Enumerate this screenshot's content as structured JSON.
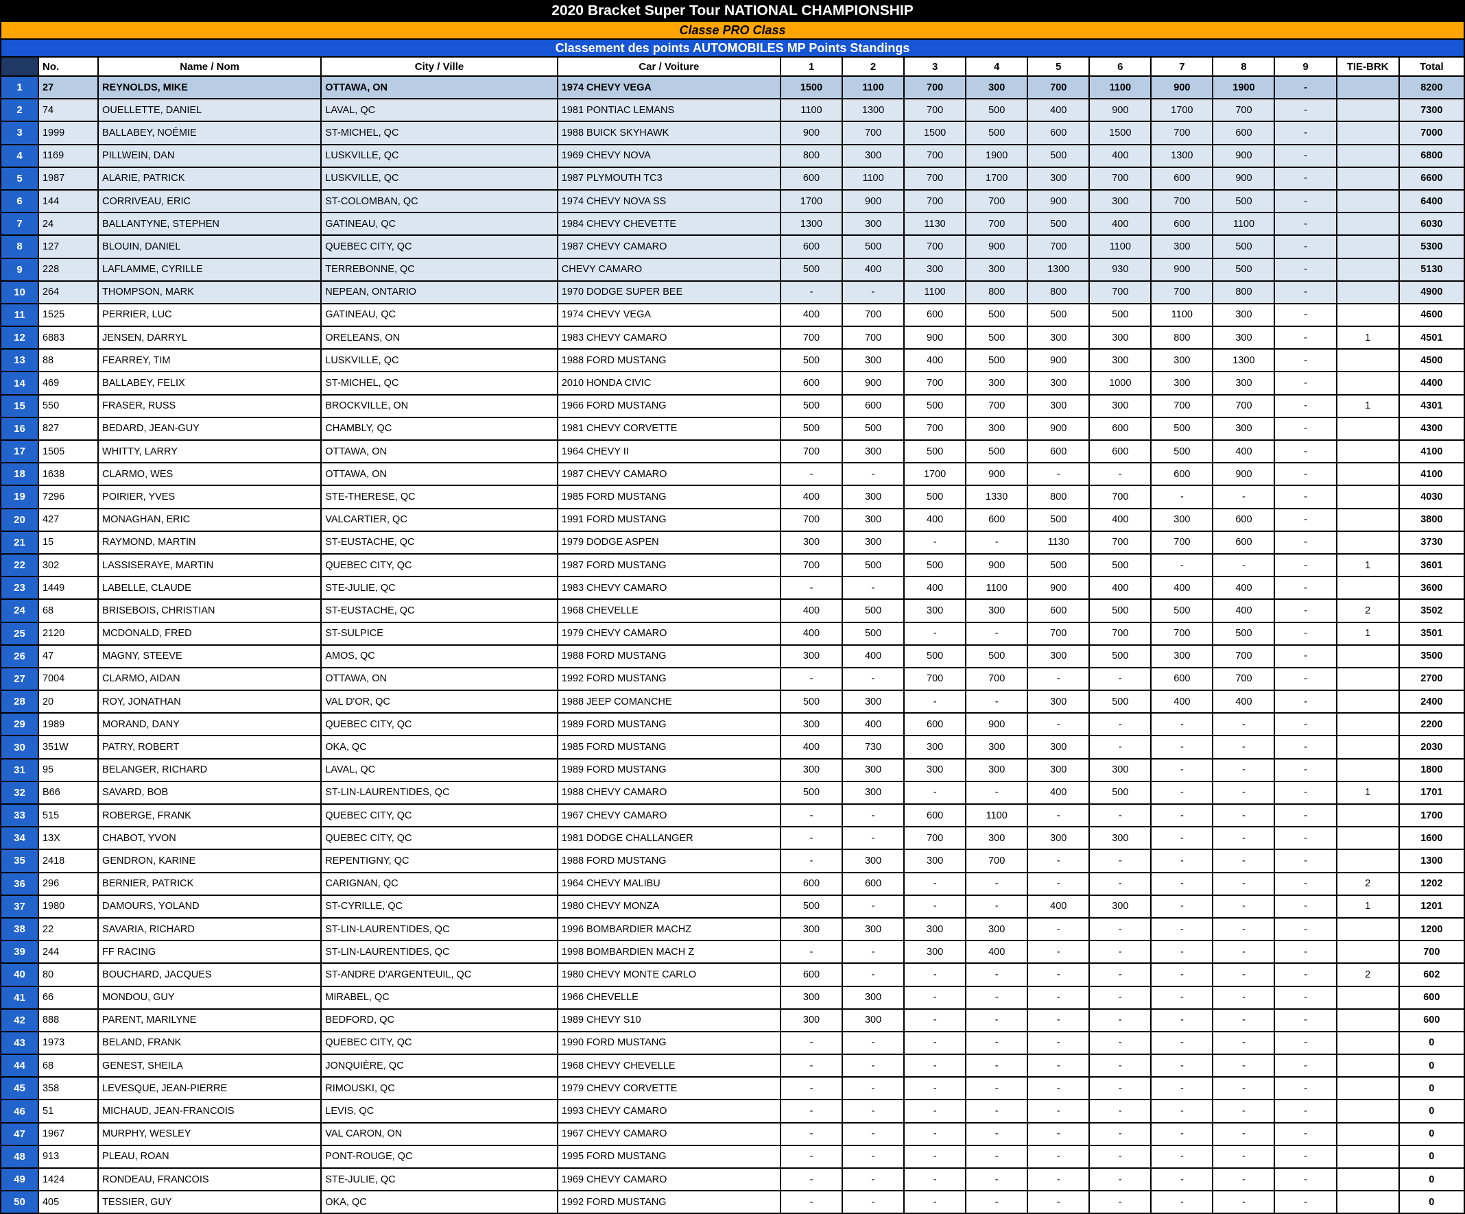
{
  "banners": {
    "title": "2020 Bracket Super Tour NATIONAL CHAMPIONSHIP",
    "class_line": "Classe PRO Class",
    "standings_line": "Classement des points AUTOMOBILES MP Points Standings"
  },
  "colors": {
    "title_bg": "#000000",
    "class_bg": "#FFA500",
    "standings_bg": "#1655D4",
    "rank_column_bg": "#2264CC",
    "corner_bg": "#1F3864",
    "rank1_row_bg": "#B8CCE4",
    "top10_row_bg": "#DCE6F1",
    "grid": "#000000"
  },
  "columns": [
    "No.",
    "Name / Nom",
    "City / Ville",
    "Car / Voiture",
    "1",
    "2",
    "3",
    "4",
    "5",
    "6",
    "7",
    "8",
    "9",
    "TIE-BRK",
    "Total"
  ],
  "rows": [
    {
      "rank": "1",
      "no": "27",
      "name": "REYNOLDS, MIKE",
      "city": "OTTAWA, ON",
      "car": "1974 CHEVY VEGA",
      "points": [
        "1500",
        "1100",
        "700",
        "300",
        "700",
        "1100",
        "900",
        "1900",
        "-"
      ],
      "tie": "",
      "total": "8200"
    },
    {
      "rank": "2",
      "no": "74",
      "name": "OUELLETTE, DANIEL",
      "city": "LAVAL, QC",
      "car": "1981 PONTIAC LEMANS",
      "points": [
        "1100",
        "1300",
        "700",
        "500",
        "400",
        "900",
        "1700",
        "700",
        "-"
      ],
      "tie": "",
      "total": "7300"
    },
    {
      "rank": "3",
      "no": "1999",
      "name": "BALLABEY, NOÉMIE",
      "city": "ST-MICHEL, QC",
      "car": "1988 BUICK SKYHAWK",
      "points": [
        "900",
        "700",
        "1500",
        "500",
        "600",
        "1500",
        "700",
        "600",
        "-"
      ],
      "tie": "",
      "total": "7000"
    },
    {
      "rank": "4",
      "no": "1169",
      "name": "PILLWEIN, DAN",
      "city": "LUSKVILLE, QC",
      "car": "1969 CHEVY NOVA",
      "points": [
        "800",
        "300",
        "700",
        "1900",
        "500",
        "400",
        "1300",
        "900",
        "-"
      ],
      "tie": "",
      "total": "6800"
    },
    {
      "rank": "5",
      "no": "1987",
      "name": "ALARIE, PATRICK",
      "city": "LUSKVILLE, QC",
      "car": "1987 PLYMOUTH TC3",
      "points": [
        "600",
        "1100",
        "700",
        "1700",
        "300",
        "700",
        "600",
        "900",
        "-"
      ],
      "tie": "",
      "total": "6600"
    },
    {
      "rank": "6",
      "no": "144",
      "name": "CORRIVEAU, ERIC",
      "city": "ST-COLOMBAN, QC",
      "car": "1974 CHEVY NOVA SS",
      "points": [
        "1700",
        "900",
        "700",
        "700",
        "900",
        "300",
        "700",
        "500",
        "-"
      ],
      "tie": "",
      "total": "6400"
    },
    {
      "rank": "7",
      "no": "24",
      "name": "BALLANTYNE, STEPHEN",
      "city": "GATINEAU, QC",
      "car": "1984 CHEVY CHEVETTE",
      "points": [
        "1300",
        "300",
        "1130",
        "700",
        "500",
        "400",
        "600",
        "1100",
        "-"
      ],
      "tie": "",
      "total": "6030"
    },
    {
      "rank": "8",
      "no": "127",
      "name": "BLOUIN, DANIEL",
      "city": "QUEBEC CITY, QC",
      "car": "1987 CHEVY CAMARO",
      "points": [
        "600",
        "500",
        "700",
        "900",
        "700",
        "1100",
        "300",
        "500",
        "-"
      ],
      "tie": "",
      "total": "5300"
    },
    {
      "rank": "9",
      "no": "228",
      "name": "LAFLAMME, CYRILLE",
      "city": "TERREBONNE, QC",
      "car": "CHEVY CAMARO",
      "points": [
        "500",
        "400",
        "300",
        "300",
        "1300",
        "930",
        "900",
        "500",
        "-"
      ],
      "tie": "",
      "total": "5130"
    },
    {
      "rank": "10",
      "no": "264",
      "name": "THOMPSON, MARK",
      "city": "NEPEAN, ONTARIO",
      "car": "1970 DODGE SUPER BEE",
      "points": [
        "-",
        "-",
        "1100",
        "800",
        "800",
        "700",
        "700",
        "800",
        "-"
      ],
      "tie": "",
      "total": "4900"
    },
    {
      "rank": "11",
      "no": "1525",
      "name": "PERRIER, LUC",
      "city": "GATINEAU, QC",
      "car": "1974 CHEVY VEGA",
      "points": [
        "400",
        "700",
        "600",
        "500",
        "500",
        "500",
        "1100",
        "300",
        "-"
      ],
      "tie": "",
      "total": "4600"
    },
    {
      "rank": "12",
      "no": "6883",
      "name": "JENSEN, DARRYL",
      "city": "ORELEANS, ON",
      "car": "1983 CHEVY CAMARO",
      "points": [
        "700",
        "700",
        "900",
        "500",
        "300",
        "300",
        "800",
        "300",
        "-"
      ],
      "tie": "1",
      "total": "4501"
    },
    {
      "rank": "13",
      "no": "88",
      "name": "FEARREY, TIM",
      "city": "LUSKVILLE, QC",
      "car": "1988 FORD MUSTANG",
      "points": [
        "500",
        "300",
        "400",
        "500",
        "900",
        "300",
        "300",
        "1300",
        "-"
      ],
      "tie": "",
      "total": "4500"
    },
    {
      "rank": "14",
      "no": "469",
      "name": "BALLABEY, FELIX",
      "city": "ST-MICHEL, QC",
      "car": "2010 HONDA CIVIC",
      "points": [
        "600",
        "900",
        "700",
        "300",
        "300",
        "1000",
        "300",
        "300",
        "-"
      ],
      "tie": "",
      "total": "4400"
    },
    {
      "rank": "15",
      "no": "550",
      "name": "FRASER, RUSS",
      "city": "BROCKVILLE, ON",
      "car": "1966 FORD MUSTANG",
      "points": [
        "500",
        "600",
        "500",
        "700",
        "300",
        "300",
        "700",
        "700",
        "-"
      ],
      "tie": "1",
      "total": "4301"
    },
    {
      "rank": "16",
      "no": "827",
      "name": "BEDARD, JEAN-GUY",
      "city": "CHAMBLY, QC",
      "car": "1981 CHEVY CORVETTE",
      "points": [
        "500",
        "500",
        "700",
        "300",
        "900",
        "600",
        "500",
        "300",
        "-"
      ],
      "tie": "",
      "total": "4300"
    },
    {
      "rank": "17",
      "no": "1505",
      "name": "WHITTY, LARRY",
      "city": "OTTAWA, ON",
      "car": "1964 CHEVY II",
      "points": [
        "700",
        "300",
        "500",
        "500",
        "600",
        "600",
        "500",
        "400",
        "-"
      ],
      "tie": "",
      "total": "4100"
    },
    {
      "rank": "18",
      "no": "1638",
      "name": "CLARMO, WES",
      "city": "OTTAWA, ON",
      "car": "1987 CHEVY CAMARO",
      "points": [
        "-",
        "-",
        "1700",
        "900",
        "-",
        "-",
        "600",
        "900",
        "-"
      ],
      "tie": "",
      "total": "4100"
    },
    {
      "rank": "19",
      "no": "7296",
      "name": "POIRIER, YVES",
      "city": "STE-THERESE, QC",
      "car": "1985 FORD MUSTANG",
      "points": [
        "400",
        "300",
        "500",
        "1330",
        "800",
        "700",
        "-",
        "-",
        "-"
      ],
      "tie": "",
      "total": "4030"
    },
    {
      "rank": "20",
      "no": "427",
      "name": "MONAGHAN, ERIC",
      "city": "VALCARTIER, QC",
      "car": "1991 FORD MUSTANG",
      "points": [
        "700",
        "300",
        "400",
        "600",
        "500",
        "400",
        "300",
        "600",
        "-"
      ],
      "tie": "",
      "total": "3800"
    },
    {
      "rank": "21",
      "no": "15",
      "name": "RAYMOND, MARTIN",
      "city": "ST-EUSTACHE, QC",
      "car": "1979 DODGE ASPEN",
      "points": [
        "300",
        "300",
        "-",
        "-",
        "1130",
        "700",
        "700",
        "600",
        "-"
      ],
      "tie": "",
      "total": "3730"
    },
    {
      "rank": "22",
      "no": "302",
      "name": "LASSISERAYE, MARTIN",
      "city": "QUEBEC CITY, QC",
      "car": "1987 FORD MUSTANG",
      "points": [
        "700",
        "500",
        "500",
        "900",
        "500",
        "500",
        "-",
        "-",
        "-"
      ],
      "tie": "1",
      "total": "3601"
    },
    {
      "rank": "23",
      "no": "1449",
      "name": "LABELLE, CLAUDE",
      "city": "STE-JULIE, QC",
      "car": "1983 CHEVY CAMARO",
      "points": [
        "-",
        "-",
        "400",
        "1100",
        "900",
        "400",
        "400",
        "400",
        "-"
      ],
      "tie": "",
      "total": "3600"
    },
    {
      "rank": "24",
      "no": "68",
      "name": "BRISEBOIS, CHRISTIAN",
      "city": "ST-EUSTACHE, QC",
      "car": "1968 CHEVELLE",
      "points": [
        "400",
        "500",
        "300",
        "300",
        "600",
        "500",
        "500",
        "400",
        "-"
      ],
      "tie": "2",
      "total": "3502"
    },
    {
      "rank": "25",
      "no": "2120",
      "name": "MCDONALD, FRED",
      "city": "ST-SULPICE",
      "car": "1979 CHEVY CAMARO",
      "points": [
        "400",
        "500",
        "-",
        "-",
        "700",
        "700",
        "700",
        "500",
        "-"
      ],
      "tie": "1",
      "total": "3501"
    },
    {
      "rank": "26",
      "no": "47",
      "name": "MAGNY, STEEVE",
      "city": "AMOS, QC",
      "car": "1988 FORD MUSTANG",
      "points": [
        "300",
        "400",
        "500",
        "500",
        "300",
        "500",
        "300",
        "700",
        "-"
      ],
      "tie": "",
      "total": "3500"
    },
    {
      "rank": "27",
      "no": "7004",
      "name": "CLARMO, AIDAN",
      "city": "OTTAWA, ON",
      "car": "1992 FORD MUSTANG",
      "points": [
        "-",
        "-",
        "700",
        "700",
        "-",
        "-",
        "600",
        "700",
        "-"
      ],
      "tie": "",
      "total": "2700"
    },
    {
      "rank": "28",
      "no": "20",
      "name": "ROY, JONATHAN",
      "city": "VAL D'OR, QC",
      "car": "1988 JEEP COMANCHE",
      "points": [
        "500",
        "300",
        "-",
        "-",
        "300",
        "500",
        "400",
        "400",
        "-"
      ],
      "tie": "",
      "total": "2400"
    },
    {
      "rank": "29",
      "no": "1989",
      "name": "MORAND, DANY",
      "city": "QUEBEC CITY, QC",
      "car": "1989 FORD MUSTANG",
      "points": [
        "300",
        "400",
        "600",
        "900",
        "-",
        "-",
        "-",
        "-",
        "-"
      ],
      "tie": "",
      "total": "2200"
    },
    {
      "rank": "30",
      "no": "351W",
      "name": "PATRY, ROBERT",
      "city": "OKA, QC",
      "car": "1985 FORD MUSTANG",
      "points": [
        "400",
        "730",
        "300",
        "300",
        "300",
        "-",
        "-",
        "-",
        "-"
      ],
      "tie": "",
      "total": "2030"
    },
    {
      "rank": "31",
      "no": "95",
      "name": "BELANGER, RICHARD",
      "city": "LAVAL, QC",
      "car": "1989 FORD MUSTANG",
      "points": [
        "300",
        "300",
        "300",
        "300",
        "300",
        "300",
        "-",
        "-",
        "-"
      ],
      "tie": "",
      "total": "1800"
    },
    {
      "rank": "32",
      "no": "B66",
      "name": "SAVARD, BOB",
      "city": "ST-LIN-LAURENTIDES, QC",
      "car": "1988 CHEVY CAMARO",
      "points": [
        "500",
        "300",
        "-",
        "-",
        "400",
        "500",
        "-",
        "-",
        "-"
      ],
      "tie": "1",
      "total": "1701"
    },
    {
      "rank": "33",
      "no": "515",
      "name": "ROBERGE, FRANK",
      "city": "QUEBEC CITY, QC",
      "car": "1967 CHEVY CAMARO",
      "points": [
        "-",
        "-",
        "600",
        "1100",
        "-",
        "-",
        "-",
        "-",
        "-"
      ],
      "tie": "",
      "total": "1700"
    },
    {
      "rank": "34",
      "no": "13X",
      "name": "CHABOT, YVON",
      "city": "QUEBEC CITY, QC",
      "car": "1981 DODGE CHALLANGER",
      "points": [
        "-",
        "-",
        "700",
        "300",
        "300",
        "300",
        "-",
        "-",
        "-"
      ],
      "tie": "",
      "total": "1600"
    },
    {
      "rank": "35",
      "no": "2418",
      "name": "GENDRON, KARINE",
      "city": "REPENTIGNY, QC",
      "car": "1988 FORD MUSTANG",
      "points": [
        "-",
        "300",
        "300",
        "700",
        "-",
        "-",
        "-",
        "-",
        "-"
      ],
      "tie": "",
      "total": "1300"
    },
    {
      "rank": "36",
      "no": "296",
      "name": "BERNIER, PATRICK",
      "city": "CARIGNAN, QC",
      "car": "1964 CHEVY MALIBU",
      "points": [
        "600",
        "600",
        "-",
        "-",
        "-",
        "-",
        "-",
        "-",
        "-"
      ],
      "tie": "2",
      "total": "1202"
    },
    {
      "rank": "37",
      "no": "1980",
      "name": "DAMOURS, YOLAND",
      "city": "ST-CYRILLE, QC",
      "car": "1980 CHEVY MONZA",
      "points": [
        "500",
        "-",
        "-",
        "-",
        "400",
        "300",
        "-",
        "-",
        "-"
      ],
      "tie": "1",
      "total": "1201"
    },
    {
      "rank": "38",
      "no": "22",
      "name": "SAVARIA, RICHARD",
      "city": "ST-LIN-LAURENTIDES, QC",
      "car": "1996 BOMBARDIER MACHZ",
      "points": [
        "300",
        "300",
        "300",
        "300",
        "-",
        "-",
        "-",
        "-",
        "-"
      ],
      "tie": "",
      "total": "1200"
    },
    {
      "rank": "39",
      "no": "244",
      "name": "FF RACING",
      "city": "ST-LIN-LAURENTIDES, QC",
      "car": "1998 BOMBARDIEN MACH Z",
      "points": [
        "-",
        "-",
        "300",
        "400",
        "-",
        "-",
        "-",
        "-",
        "-"
      ],
      "tie": "",
      "total": "700"
    },
    {
      "rank": "40",
      "no": "80",
      "name": "BOUCHARD, JACQUES",
      "city": "ST-ANDRE D'ARGENTEUIL, QC",
      "car": "1980 CHEVY MONTE CARLO",
      "points": [
        "600",
        "-",
        "-",
        "-",
        "-",
        "-",
        "-",
        "-",
        "-"
      ],
      "tie": "2",
      "total": "602"
    },
    {
      "rank": "41",
      "no": "66",
      "name": "MONDOU, GUY",
      "city": "MIRABEL, QC",
      "car": "1966 CHEVELLE",
      "points": [
        "300",
        "300",
        "-",
        "-",
        "-",
        "-",
        "-",
        "-",
        "-"
      ],
      "tie": "",
      "total": "600"
    },
    {
      "rank": "42",
      "no": "888",
      "name": "PARENT, MARILYNE",
      "city": "BEDFORD, QC",
      "car": "1989 CHEVY S10",
      "points": [
        "300",
        "300",
        "-",
        "-",
        "-",
        "-",
        "-",
        "-",
        "-"
      ],
      "tie": "",
      "total": "600"
    },
    {
      "rank": "43",
      "no": "1973",
      "name": "BELAND, FRANK",
      "city": "QUEBEC CITY, QC",
      "car": "1990 FORD MUSTANG",
      "points": [
        "-",
        "-",
        "-",
        "-",
        "-",
        "-",
        "-",
        "-",
        "-"
      ],
      "tie": "",
      "total": "0"
    },
    {
      "rank": "44",
      "no": "68",
      "name": "GENEST, SHEILA",
      "city": "JONQUIÈRE, QC",
      "car": "1968 CHEVY CHEVELLE",
      "points": [
        "-",
        "-",
        "-",
        "-",
        "-",
        "-",
        "-",
        "-",
        "-"
      ],
      "tie": "",
      "total": "0"
    },
    {
      "rank": "45",
      "no": "358",
      "name": "LEVESQUE, JEAN-PIERRE",
      "city": "RIMOUSKI, QC",
      "car": "1979 CHEVY CORVETTE",
      "points": [
        "-",
        "-",
        "-",
        "-",
        "-",
        "-",
        "-",
        "-",
        "-"
      ],
      "tie": "",
      "total": "0"
    },
    {
      "rank": "46",
      "no": "51",
      "name": "MICHAUD, JEAN-FRANCOIS",
      "city": "LEVIS, QC",
      "car": "1993 CHEVY CAMARO",
      "points": [
        "-",
        "-",
        "-",
        "-",
        "-",
        "-",
        "-",
        "-",
        "-"
      ],
      "tie": "",
      "total": "0"
    },
    {
      "rank": "47",
      "no": "1967",
      "name": "MURPHY, WESLEY",
      "city": "VAL CARON, ON",
      "car": "1967 CHEVY CAMARO",
      "points": [
        "-",
        "-",
        "-",
        "-",
        "-",
        "-",
        "-",
        "-",
        "-"
      ],
      "tie": "",
      "total": "0"
    },
    {
      "rank": "48",
      "no": "913",
      "name": "PLEAU, ROAN",
      "city": "PONT-ROUGE, QC",
      "car": "1995 FORD MUSTANG",
      "points": [
        "-",
        "-",
        "-",
        "-",
        "-",
        "-",
        "-",
        "-",
        "-"
      ],
      "tie": "",
      "total": "0"
    },
    {
      "rank": "49",
      "no": "1424",
      "name": "RONDEAU, FRANCOIS",
      "city": "STE-JULIE, QC",
      "car": "1969 CHEVY CAMARO",
      "points": [
        "-",
        "-",
        "-",
        "-",
        "-",
        "-",
        "-",
        "-",
        "-"
      ],
      "tie": "",
      "total": "0"
    },
    {
      "rank": "50",
      "no": "405",
      "name": "TESSIER, GUY",
      "city": "OKA, QC",
      "car": "1992 FORD MUSTANG",
      "points": [
        "-",
        "-",
        "-",
        "-",
        "-",
        "-",
        "-",
        "-",
        "-"
      ],
      "tie": "",
      "total": "0"
    }
  ]
}
